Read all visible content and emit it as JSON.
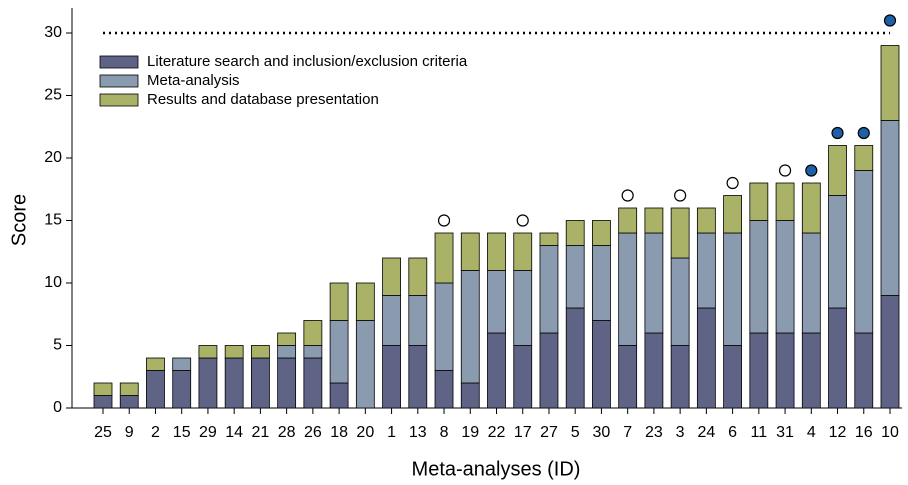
{
  "chart_data": {
    "type": "stacked-bar",
    "y_label": "Score",
    "x_label": "Meta-analyses (ID)",
    "categories": [
      "25",
      "9",
      "2",
      "15",
      "29",
      "14",
      "21",
      "28",
      "26",
      "18",
      "20",
      "1",
      "13",
      "8",
      "19",
      "22",
      "17",
      "27",
      "5",
      "30",
      "7",
      "23",
      "3",
      "24",
      "6",
      "11",
      "31",
      "4",
      "12",
      "16",
      "10"
    ],
    "series": [
      {
        "name": "Literature search and inclusion/exclusion criteria",
        "color": "#5f6386",
        "values": [
          1,
          1,
          3,
          3,
          4,
          4,
          4,
          4,
          4,
          2,
          0,
          5,
          5,
          3,
          2,
          6,
          5,
          6,
          8,
          7,
          5,
          6,
          5,
          8,
          5,
          6,
          6,
          6,
          8,
          6,
          9
        ]
      },
      {
        "name": "Meta-analysis",
        "color": "#8a9bb0",
        "values": [
          0,
          0,
          0,
          1,
          0,
          0,
          0,
          1,
          1,
          5,
          7,
          4,
          4,
          7,
          9,
          5,
          6,
          7,
          5,
          6,
          9,
          8,
          7,
          6,
          9,
          9,
          9,
          8,
          9,
          13,
          14
        ]
      },
      {
        "name": "Results and database presentation",
        "color": "#a9b266",
        "values": [
          1,
          1,
          1,
          0,
          1,
          1,
          1,
          1,
          2,
          3,
          3,
          3,
          3,
          4,
          3,
          3,
          3,
          1,
          2,
          2,
          2,
          2,
          4,
          2,
          3,
          3,
          3,
          4,
          4,
          2,
          6
        ]
      }
    ],
    "open_markers": {
      "color": "#ffffff",
      "values": [
        null,
        null,
        null,
        null,
        null,
        null,
        null,
        null,
        null,
        null,
        null,
        null,
        null,
        15,
        null,
        null,
        15,
        null,
        null,
        null,
        17,
        null,
        17,
        null,
        18,
        null,
        19,
        null,
        null,
        null,
        null
      ]
    },
    "filled_markers": {
      "color": "#1f5fa8",
      "values": [
        null,
        null,
        null,
        null,
        null,
        null,
        null,
        null,
        null,
        null,
        null,
        null,
        null,
        null,
        null,
        null,
        null,
        null,
        null,
        null,
        null,
        null,
        null,
        null,
        null,
        null,
        null,
        19,
        22,
        22,
        31
      ]
    },
    "reference_line": 30,
    "ylim": [
      0,
      32
    ],
    "yticks": [
      0,
      5,
      10,
      15,
      20,
      25,
      30
    ]
  }
}
